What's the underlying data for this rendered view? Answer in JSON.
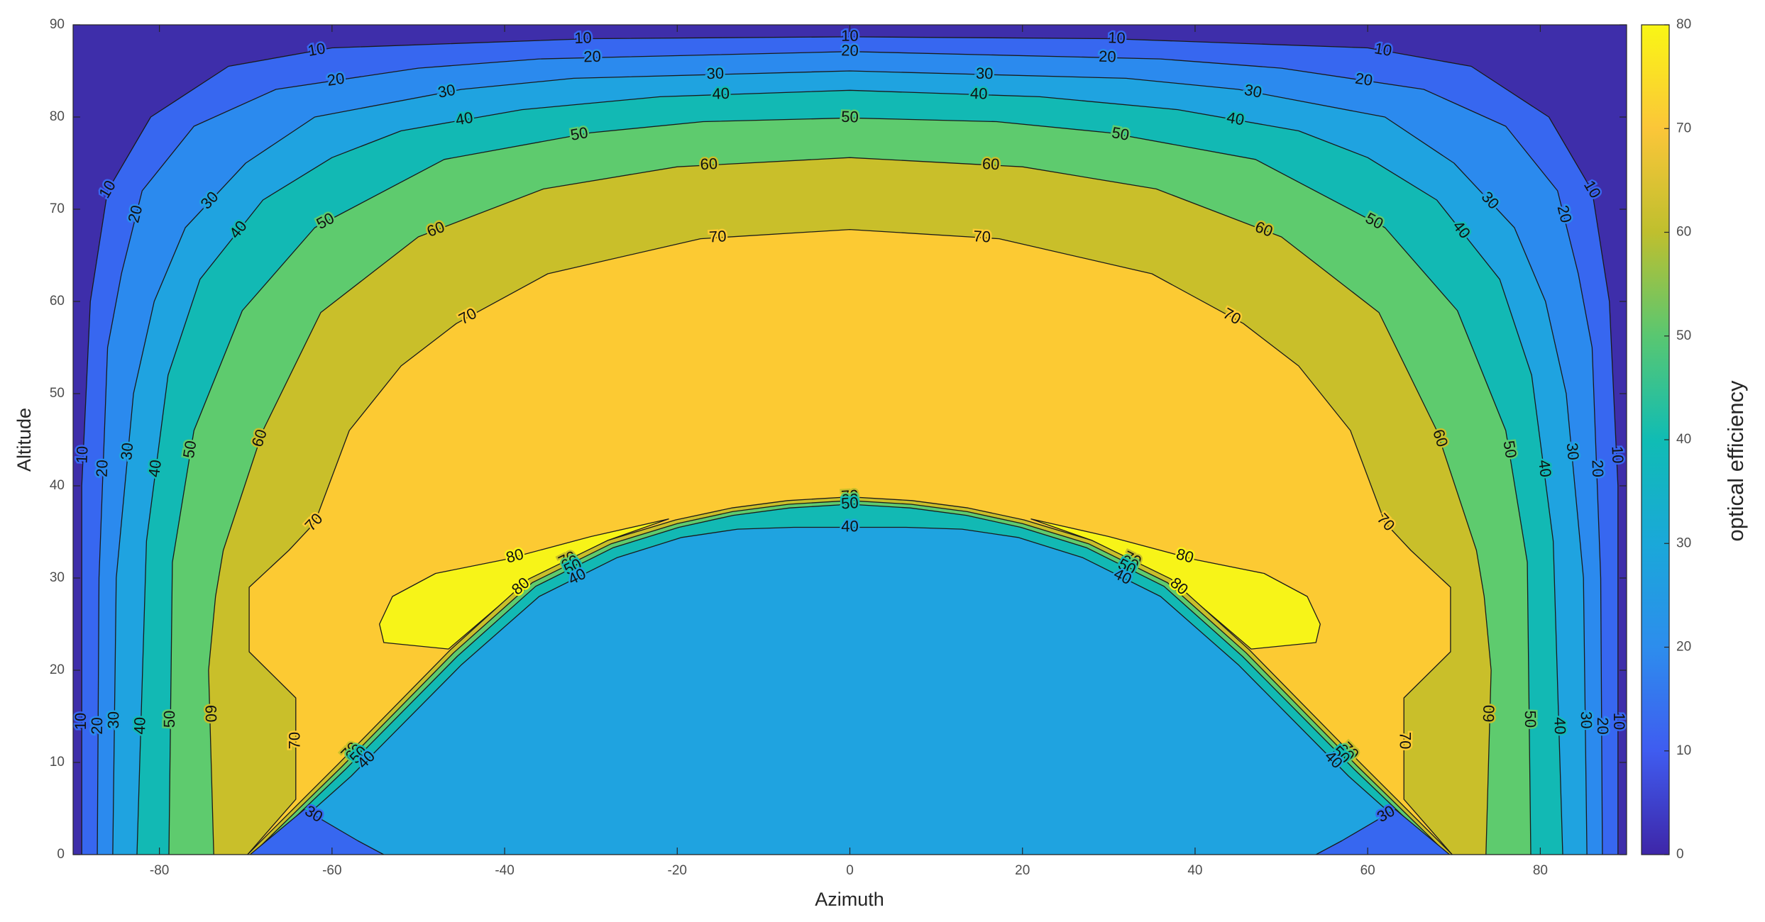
{
  "chart_data": {
    "type": "contour",
    "xlabel": "Azimuth",
    "ylabel": "Altitude",
    "colorbar_label": "optical efficiency",
    "xlim": [
      -90,
      90
    ],
    "ylim": [
      0,
      90
    ],
    "xticks": [
      -80,
      -60,
      -40,
      -20,
      0,
      20,
      40,
      60,
      80
    ],
    "yticks": [
      0,
      10,
      20,
      30,
      40,
      50,
      60,
      70,
      80,
      90
    ],
    "clim": [
      0,
      80
    ],
    "cticks": [
      0,
      10,
      20,
      30,
      40,
      50,
      60,
      70,
      80
    ],
    "colormap": [
      "#3e26a8",
      "#3f5cf0",
      "#2d8ded",
      "#1aa8d9",
      "#10bcb4",
      "#59c771",
      "#bfbf2e",
      "#fbc639",
      "#f9f615"
    ],
    "background": "#3e2eaa",
    "contours": [
      {
        "level": 10,
        "color": "#3767f0",
        "x": [
          -89,
          -89,
          -88,
          -86,
          -81,
          -72,
          -60,
          -30,
          0,
          30,
          60,
          72,
          81,
          86,
          88,
          89,
          89
        ],
        "y": [
          0,
          40,
          60,
          72,
          80,
          85.5,
          87.5,
          88.5,
          88.7,
          88.5,
          87.5,
          85.5,
          80,
          72,
          60,
          40,
          0
        ]
      },
      {
        "level": 20,
        "color": "#2b8aee",
        "x": [
          -87.2,
          -87,
          -86,
          -84.4,
          -82,
          -76,
          -66.5,
          -50,
          -36,
          0,
          36,
          50,
          66.5,
          76,
          82,
          84.4,
          86,
          87,
          87.2
        ],
        "y": [
          0,
          30,
          55,
          63,
          72,
          79,
          83,
          85.3,
          86.3,
          87.1,
          86.3,
          85.3,
          83,
          79,
          72,
          63,
          55,
          30,
          0
        ]
      },
      {
        "level": 30,
        "color": "#1fa3e0",
        "x": [
          -85.4,
          -85,
          -83,
          -80.6,
          -77,
          -70,
          -62,
          -45,
          -32,
          0,
          32,
          45,
          62,
          70,
          77,
          80.6,
          83,
          85,
          85.4
        ],
        "y": [
          0,
          30,
          50,
          60,
          68,
          75,
          80,
          83,
          84.2,
          85,
          84.2,
          83,
          80,
          75,
          68,
          60,
          50,
          30,
          0
        ]
      },
      {
        "level": 40,
        "color": "#12b9b4",
        "x": [
          -82.6,
          -81.5,
          -79,
          -75.3,
          -68,
          -60,
          -52,
          -38,
          -22,
          0,
          22,
          38,
          52,
          60,
          68,
          75.3,
          79,
          81.5,
          82.6
        ],
        "y": [
          0,
          34,
          52,
          62.4,
          71,
          75.6,
          78.5,
          80.8,
          82.2,
          82.9,
          82.2,
          80.8,
          78.5,
          75.6,
          71,
          62.4,
          52,
          34,
          0
        ]
      },
      {
        "level": 50,
        "color": "#5ecb6e",
        "x": [
          -78.9,
          -78.5,
          -76,
          -70.4,
          -62,
          -47,
          -30,
          -17,
          0,
          17,
          30,
          47,
          62,
          70.4,
          76,
          78.5,
          78.9
        ],
        "y": [
          0,
          31.7,
          46,
          59,
          68,
          75.4,
          78.3,
          79.5,
          79.9,
          79.5,
          78.3,
          75.4,
          68,
          59,
          46,
          31.7,
          0
        ]
      },
      {
        "level": 60,
        "color": "#c9bf2a",
        "x": [
          -73.7,
          -74.3,
          -73.5,
          -72.6,
          -68,
          -61.3,
          -50,
          -35.5,
          -20,
          0,
          20,
          35.5,
          50,
          61.3,
          68,
          72.6,
          73.5,
          74.3,
          73.7
        ],
        "y": [
          0,
          20,
          28,
          33,
          46,
          58.8,
          67,
          72.2,
          74.6,
          75.6,
          74.6,
          72.2,
          67,
          58.8,
          46,
          33,
          28,
          20,
          0
        ]
      },
      {
        "level": 70,
        "color": "#fcca33",
        "x": [
          -69.8,
          -64.2,
          -64.2,
          -69.6,
          -69.6,
          -65,
          -62,
          -58,
          -52,
          -45.6,
          -35,
          -17.3,
          0,
          17.3,
          35,
          45.6,
          52,
          58,
          62,
          65,
          69.6,
          69.6,
          64.2,
          64.2,
          69.8
        ],
        "y": [
          0,
          6,
          17,
          22,
          29,
          33,
          36,
          46,
          53,
          57.6,
          63,
          66.8,
          67.8,
          66.8,
          63,
          57.6,
          53,
          46,
          36,
          33,
          29,
          22,
          17,
          6,
          0
        ]
      },
      {
        "level": 80,
        "color": "#f7f418",
        "x": [
          -54.5,
          -53,
          -48,
          -40,
          -30,
          -21,
          -28,
          -37,
          -46.5,
          -54
        ],
        "y": [
          25,
          28,
          30.5,
          32,
          34.5,
          36.4,
          34.1,
          29.9,
          22.3,
          23
        ]
      },
      {
        "level": 80,
        "color": "#f7f418",
        "x": [
          54,
          46.5,
          37,
          28,
          21,
          30,
          40,
          48,
          53,
          54.5
        ],
        "y": [
          23,
          22.3,
          29.9,
          34.1,
          36.4,
          34.5,
          32,
          30.5,
          28,
          25
        ]
      },
      {
        "level": 70,
        "color": "#c9bf2a",
        "x": [
          -69.8,
          -59.3,
          -46.3,
          -37.2,
          -28,
          -20.2,
          -13.7,
          -7.2,
          0,
          7.2,
          13.7,
          20.2,
          28,
          37.2,
          46.3,
          59.3,
          69.8
        ],
        "y": [
          0,
          9.8,
          22.2,
          29.9,
          34.1,
          36.3,
          37.6,
          38.4,
          38.8,
          38.4,
          37.6,
          36.3,
          34.1,
          29.9,
          22.2,
          9.8,
          0
        ]
      },
      {
        "level": 60,
        "color": "#5ecb6e",
        "x": [
          -69.3,
          -58.9,
          -45.9,
          -36.8,
          -27.7,
          -20,
          -13.6,
          -7.1,
          0,
          7.1,
          13.6,
          20,
          27.7,
          36.8,
          45.9,
          58.9,
          69.3
        ],
        "y": [
          0,
          9.5,
          21.9,
          29.5,
          33.7,
          35.9,
          37.2,
          38,
          38.4,
          38,
          37.2,
          35.9,
          33.7,
          29.5,
          21.9,
          9.5,
          0
        ]
      },
      {
        "level": 50,
        "color": "#12b9b4",
        "x": [
          -68.8,
          -58.5,
          -45.5,
          -36.4,
          -27.4,
          -19.8,
          -13.5,
          -7,
          0,
          7,
          13.5,
          19.8,
          27.4,
          36.4,
          45.5,
          58.5,
          68.8
        ],
        "y": [
          0,
          9.2,
          21.5,
          29.1,
          33.3,
          35.5,
          36.8,
          37.6,
          38,
          37.6,
          36.8,
          35.5,
          33.3,
          29.1,
          21.5,
          9.2,
          0
        ]
      },
      {
        "level": 40,
        "color": "#1fa3e0",
        "x": [
          -68,
          -57.8,
          -45,
          -36,
          -27,
          -19.5,
          -13,
          -6.5,
          0,
          6.5,
          13,
          19.5,
          27,
          36,
          45,
          57.8,
          68
        ],
        "y": [
          0,
          8.5,
          20.6,
          28,
          32.2,
          34.4,
          35.3,
          35.5,
          35.5,
          35.5,
          35.3,
          34.4,
          32.2,
          28,
          20.6,
          8.5,
          0
        ]
      },
      {
        "level": 30,
        "color": "#3767f0",
        "x": [
          -69.5,
          -63.2,
          -57,
          -54
        ],
        "y": [
          0,
          4.9,
          1.5,
          0
        ]
      },
      {
        "level": 30,
        "color": "#3767f0",
        "x": [
          54,
          57,
          63.2,
          69.5
        ],
        "y": [
          0,
          1.5,
          4.9,
          0
        ]
      }
    ]
  }
}
